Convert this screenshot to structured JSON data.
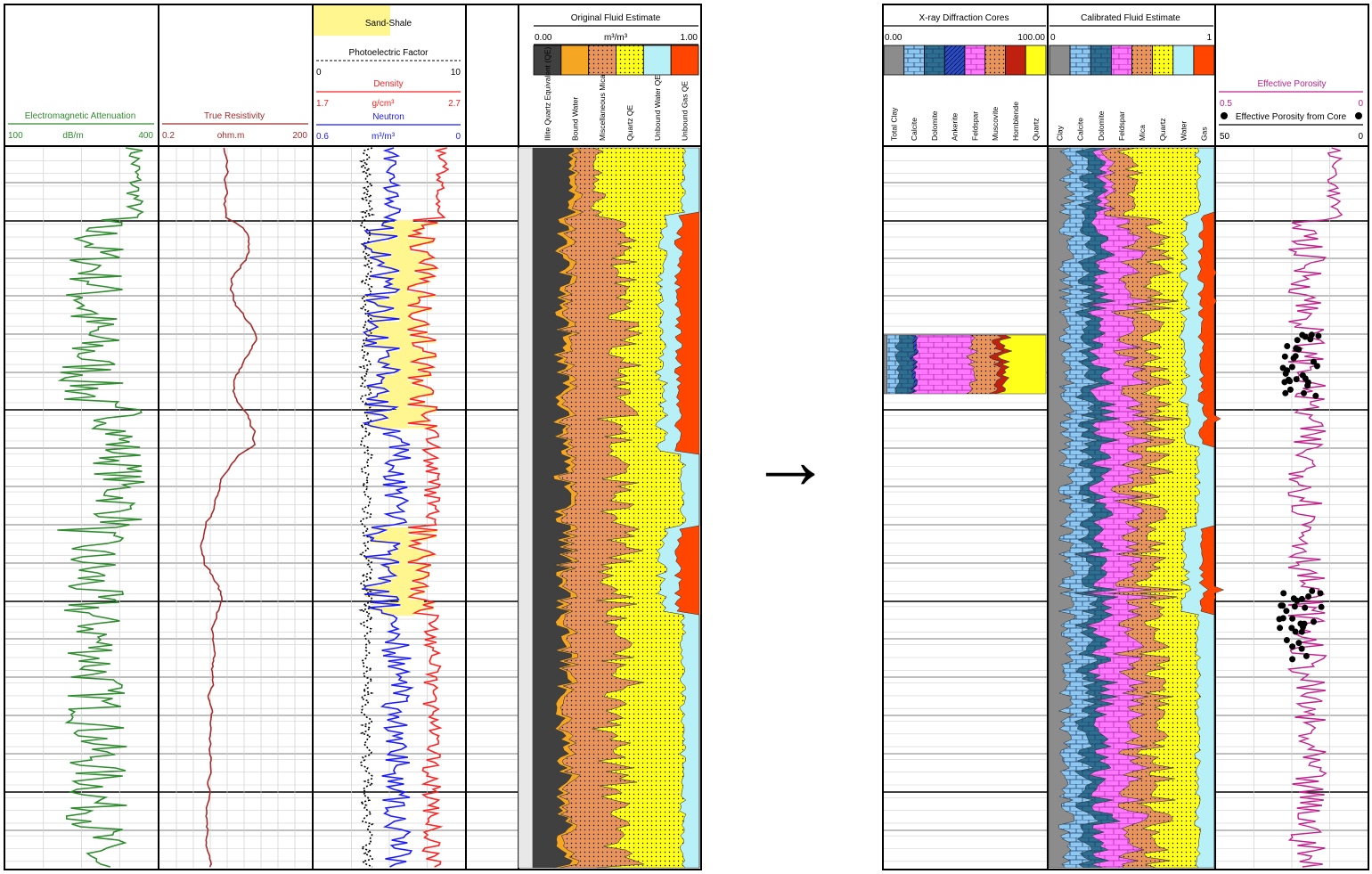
{
  "left_panel": {
    "tracks": {
      "em": {
        "title": "Electromagnetic Attenuation",
        "min": "100",
        "unit": "dB/m",
        "max": "400",
        "color": "#2e8b2e",
        "scale": [
          100,
          400
        ]
      },
      "res": {
        "title": "True Resistivity",
        "min": "0.2",
        "unit": "ohm.m",
        "max": "200",
        "color": "#a52a2a",
        "scale": [
          0.2,
          200
        ],
        "log_scale": true
      },
      "dn": {
        "legend_fill_label": "Sand-Shale",
        "pef_title": "Photoelectric Factor",
        "pef_min": "0",
        "pef_max": "10",
        "density_title": "Density",
        "density_min": "1.7",
        "density_unit": "g/cm³",
        "density_max": "2.7",
        "neutron_title": "Neutron",
        "neutron_min": "0.6",
        "neutron_unit": "m³/m³",
        "neutron_max": "0",
        "fill_color": "#fff68f",
        "density_color": "#ff2020",
        "neutron_color": "#1a1aff",
        "pef_color": "#000000"
      },
      "fluid": {
        "title": "Original Fluid Estimate",
        "min": "0.00",
        "unit": "m³/m³",
        "max": "1.00",
        "components": [
          {
            "name": "Illite Quartz Equivalent (QE)",
            "color": "#404040"
          },
          {
            "name": "Bound Water",
            "color": "#f5a623"
          },
          {
            "name": "Miscellaneous Mica",
            "color": "#e8945a"
          },
          {
            "name": "Quartz QE",
            "color": "#ffff1a"
          },
          {
            "name": "Unbound Water QE",
            "color": "#b8f0f8"
          },
          {
            "name": "Unbound Gas QE",
            "color": "#ff4500"
          }
        ]
      }
    }
  },
  "arrow": "→",
  "right_panel": {
    "xrd": {
      "title": "X-ray Diffraction Cores",
      "min": "0.00",
      "max": "100.00",
      "components": [
        {
          "name": "Total Clay",
          "color": "#8c8c8c"
        },
        {
          "name": "Calcite",
          "color": "#8ec8f0"
        },
        {
          "name": "Dolomite",
          "color": "#2e6e8e"
        },
        {
          "name": "Ankerite",
          "color": "#2a4cc8"
        },
        {
          "name": "Feldspar",
          "color": "#ff77ff"
        },
        {
          "name": "Muscovite",
          "color": "#e8945a"
        },
        {
          "name": "Hornblende",
          "color": "#c02010"
        },
        {
          "name": "Quartz",
          "color": "#ffff1a"
        }
      ]
    },
    "calibrated": {
      "title": "Calibrated Fluid Estimate",
      "min": "0",
      "max": "1",
      "components": [
        {
          "name": "Clay",
          "color": "#8c8c8c"
        },
        {
          "name": "Calcite",
          "color": "#8ec8f0"
        },
        {
          "name": "Dolomite",
          "color": "#2e6e8e"
        },
        {
          "name": "Feldspar",
          "color": "#ff77ff"
        },
        {
          "name": "Mica",
          "color": "#e8945a"
        },
        {
          "name": "Quartz",
          "color": "#ffff1a"
        },
        {
          "name": "Water",
          "color": "#b8f0f8"
        },
        {
          "name": "Gas",
          "color": "#ff4500"
        }
      ]
    },
    "porosity": {
      "title": "Effective Porosity",
      "min": "0.5",
      "max": "0",
      "color": "#c0208c",
      "core_label": "Effective Porosity from Core",
      "core_min": "50",
      "core_max": "0",
      "scale": [
        0.5,
        0
      ]
    }
  }
}
